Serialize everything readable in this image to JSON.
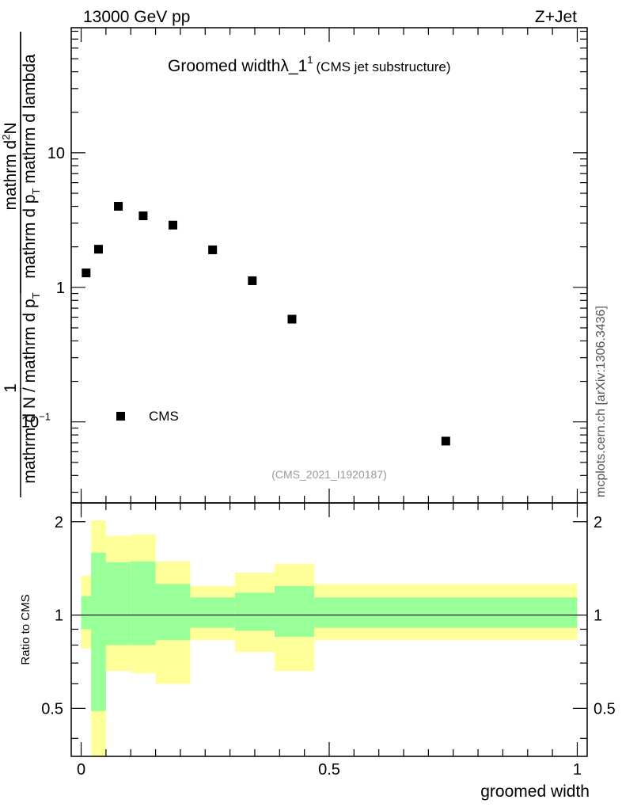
{
  "header": {
    "left": "13000 GeV pp",
    "right": "Z+Jet"
  },
  "title": {
    "main": "Groomed widthλ_1",
    "sup": "1",
    "sub": "(CMS jet substructure)"
  },
  "watermark": "mcplots.cern.ch [arXiv:1306.3436]",
  "analysis_id": "(CMS_2021_I1920187)",
  "colors": {
    "green_band": "#99ff99",
    "yellow_band": "#ffff99",
    "marker": "#000000"
  },
  "chart_data": [
    {
      "type": "scatter",
      "ylabel_parts": {
        "numerator": "1",
        "denominator": "mathrm d N / mathrm d p",
        "denominator_sub": "T",
        "right_num_a": "mathrm d",
        "right_num_sup": "2",
        "right_num_b": "N",
        "right_den_a": "mathrm d p",
        "right_den_sub": "T",
        "right_den_b": " mathrm d lambda"
      },
      "yscale": "log",
      "ylim": [
        0.025,
        85
      ],
      "xlim": [
        -0.02,
        1.02
      ],
      "y_ticks": [
        {
          "value": 10,
          "label": "10"
        },
        {
          "value": 1,
          "label": "1"
        },
        {
          "value": 0.1,
          "label": "10",
          "sup": "−1"
        }
      ],
      "legend": {
        "position": "left-lower",
        "label": "CMS"
      },
      "series": [
        {
          "name": "CMS",
          "x": [
            0.01,
            0.035,
            0.075,
            0.125,
            0.185,
            0.265,
            0.345,
            0.425,
            0.735
          ],
          "y": [
            1.28,
            1.92,
            4.0,
            3.4,
            2.9,
            1.9,
            1.12,
            0.58,
            0.072
          ]
        }
      ]
    },
    {
      "type": "area",
      "ylabel": "Ratio to CMS",
      "xlabel": "groomed width",
      "yscale": "log",
      "ylim": [
        0.35,
        2.3
      ],
      "xlim": [
        -0.02,
        1.02
      ],
      "y_ticks": [
        {
          "value": 2,
          "label": "2"
        },
        {
          "value": 1,
          "label": "1"
        },
        {
          "value": 0.5,
          "label": "0.5"
        }
      ],
      "x_ticks": [
        {
          "value": 0,
          "label": "0"
        },
        {
          "value": 0.5,
          "label": "0.5"
        },
        {
          "value": 1,
          "label": "1"
        }
      ],
      "reference_line": 1,
      "bins": [
        0,
        0.02,
        0.05,
        0.1,
        0.15,
        0.22,
        0.31,
        0.39,
        0.47,
        1.0
      ],
      "green_low": [
        0.9,
        0.49,
        0.8,
        0.8,
        0.83,
        0.91,
        0.89,
        0.85,
        0.91
      ],
      "green_high": [
        1.15,
        1.59,
        1.48,
        1.49,
        1.26,
        1.14,
        1.18,
        1.24,
        1.14
      ],
      "yellow_low": [
        0.78,
        0.35,
        0.66,
        0.65,
        0.6,
        0.83,
        0.76,
        0.66,
        0.83
      ],
      "yellow_high": [
        1.34,
        2.02,
        1.8,
        1.82,
        1.49,
        1.24,
        1.37,
        1.46,
        1.26
      ]
    }
  ]
}
